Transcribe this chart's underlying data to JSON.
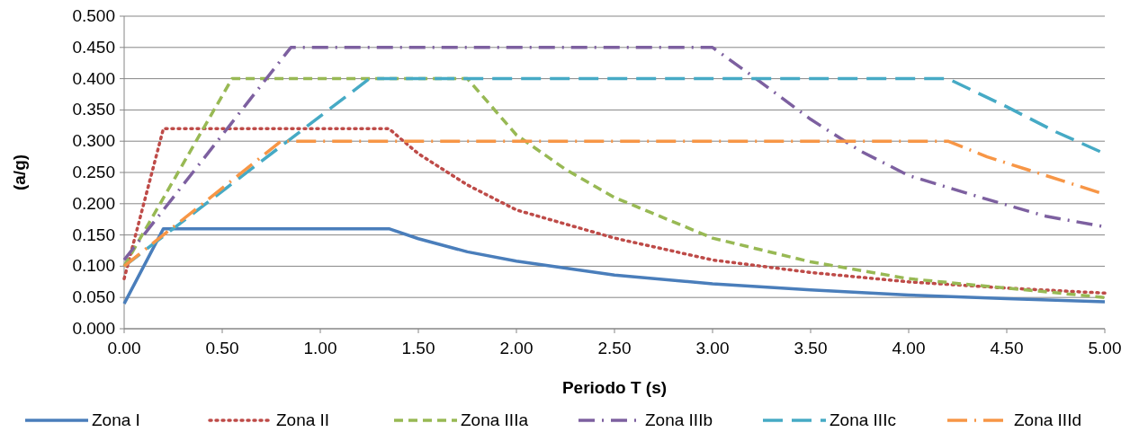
{
  "chart_data": {
    "type": "line",
    "xlabel": "Periodo T (s)",
    "ylabel": "(a/g)",
    "xlim": [
      0,
      5
    ],
    "xticks": [
      {
        "value": 0,
        "label": "0.00"
      },
      {
        "value": 0.5,
        "label": "0.50"
      },
      {
        "value": 1,
        "label": "1.00"
      },
      {
        "value": 1.5,
        "label": "1.50"
      },
      {
        "value": 2,
        "label": "2.00"
      },
      {
        "value": 2.5,
        "label": "2.50"
      },
      {
        "value": 3,
        "label": "3.00"
      },
      {
        "value": 3.5,
        "label": "3.50"
      },
      {
        "value": 4,
        "label": "4.00"
      },
      {
        "value": 4.5,
        "label": "4.50"
      },
      {
        "value": 5,
        "label": "5.00"
      }
    ],
    "ylim": [
      0,
      0.5
    ],
    "yticks": [
      {
        "value": 0,
        "label": "0.000"
      },
      {
        "value": 0.05,
        "label": "0.050"
      },
      {
        "value": 0.1,
        "label": "0.100"
      },
      {
        "value": 0.15,
        "label": "0.150"
      },
      {
        "value": 0.2,
        "label": "0.200"
      },
      {
        "value": 0.25,
        "label": "0.250"
      },
      {
        "value": 0.3,
        "label": "0.300"
      },
      {
        "value": 0.35,
        "label": "0.350"
      },
      {
        "value": 0.4,
        "label": "0.400"
      },
      {
        "value": 0.45,
        "label": "0.450"
      },
      {
        "value": 0.5,
        "label": "0.500"
      }
    ],
    "grid": "y",
    "legend": "bottom",
    "series": [
      {
        "name": "Zona I",
        "color": "#4a7ebb",
        "line_style": "solid",
        "x": [
          0,
          0.2,
          1.35,
          1.5,
          1.75,
          2,
          2.5,
          3,
          3.5,
          4,
          4.5,
          5
        ],
        "values": [
          0.04,
          0.16,
          0.16,
          0.144,
          0.123,
          0.108,
          0.086,
          0.072,
          0.062,
          0.054,
          0.048,
          0.043
        ]
      },
      {
        "name": "Zona II",
        "color": "#be4b48",
        "line_style": "dotted",
        "x": [
          0,
          0.2,
          1.35,
          1.5,
          1.75,
          2,
          2.5,
          3,
          3.5,
          4,
          4.5,
          5
        ],
        "values": [
          0.08,
          0.32,
          0.32,
          0.28,
          0.23,
          0.19,
          0.145,
          0.11,
          0.09,
          0.075,
          0.065,
          0.057
        ]
      },
      {
        "name": "Zona IIIa",
        "color": "#98b954",
        "line_style": "dashed",
        "x": [
          0,
          0.55,
          1.75,
          2,
          2.25,
          2.5,
          3,
          3.5,
          4,
          4.5,
          5
        ],
        "values": [
          0.1,
          0.4,
          0.4,
          0.31,
          0.255,
          0.21,
          0.145,
          0.107,
          0.08,
          0.065,
          0.05
        ]
      },
      {
        "name": "Zona IIIb",
        "color": "#7d60a0",
        "line_style": "dashed",
        "x": [
          0,
          0.85,
          3,
          3.2,
          3.5,
          3.75,
          4,
          4.4,
          4.7,
          5
        ],
        "values": [
          0.11,
          0.45,
          0.45,
          0.405,
          0.335,
          0.285,
          0.245,
          0.207,
          0.18,
          0.163
        ]
      },
      {
        "name": "Zona IIIc",
        "color": "#46aac5",
        "line_style": "dashed",
        "x": [
          0,
          1.25,
          4.2,
          4.5,
          4.75,
          5
        ],
        "values": [
          0.1,
          0.4,
          0.4,
          0.355,
          0.315,
          0.28
        ]
      },
      {
        "name": "Zona IIId",
        "color": "#f79646",
        "line_style": "dashed",
        "x": [
          0,
          0.8,
          4.2,
          4.4,
          4.6,
          4.8,
          5
        ],
        "values": [
          0.1,
          0.3,
          0.3,
          0.275,
          0.255,
          0.235,
          0.215
        ]
      }
    ]
  }
}
